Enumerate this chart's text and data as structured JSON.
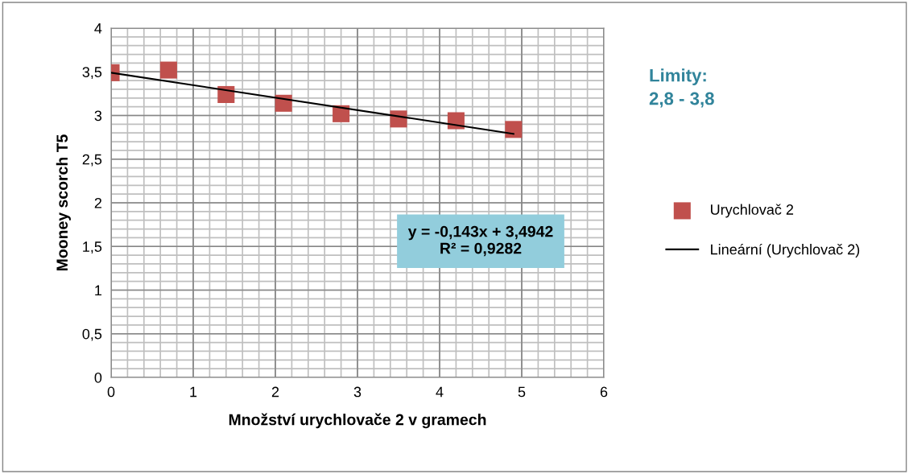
{
  "chart_data": {
    "type": "scatter",
    "xlabel": "Množství urychlovače 2 v gramech",
    "ylabel": "Mooney scorch T5",
    "x": [
      0,
      0.7,
      1.4,
      2.1,
      2.8,
      3.5,
      4.2,
      4.9
    ],
    "series": [
      {
        "name": "Urychlovač 2",
        "color": "#c0504d",
        "marker": "square",
        "values": [
          3.49,
          3.52,
          3.24,
          3.14,
          3.02,
          2.96,
          2.94,
          2.84
        ]
      },
      {
        "name": "Lineární (Urychlovač 2)",
        "color": "#000000",
        "type": "line",
        "x": [
          0,
          4.9
        ],
        "values": [
          3.49,
          2.79
        ]
      }
    ],
    "xlim": [
      0,
      6
    ],
    "xticks": [
      0,
      1,
      2,
      3,
      4,
      5,
      6
    ],
    "ylim": [
      0,
      4
    ],
    "yticks": [
      0,
      {
        "value": 0.5,
        "label": "0,5"
      },
      1,
      {
        "value": 1.5,
        "label": "1,5"
      },
      2,
      {
        "value": 2.5,
        "label": "2,5"
      },
      3,
      {
        "value": 3.5,
        "label": "3,5"
      },
      4
    ],
    "grid": true,
    "legend": "right",
    "annotations": [
      {
        "text": "y = -0,143x + 3,4942\nR² = 0,9282"
      },
      {
        "text": "Limity:\n2,8 - 3,8"
      }
    ]
  }
}
